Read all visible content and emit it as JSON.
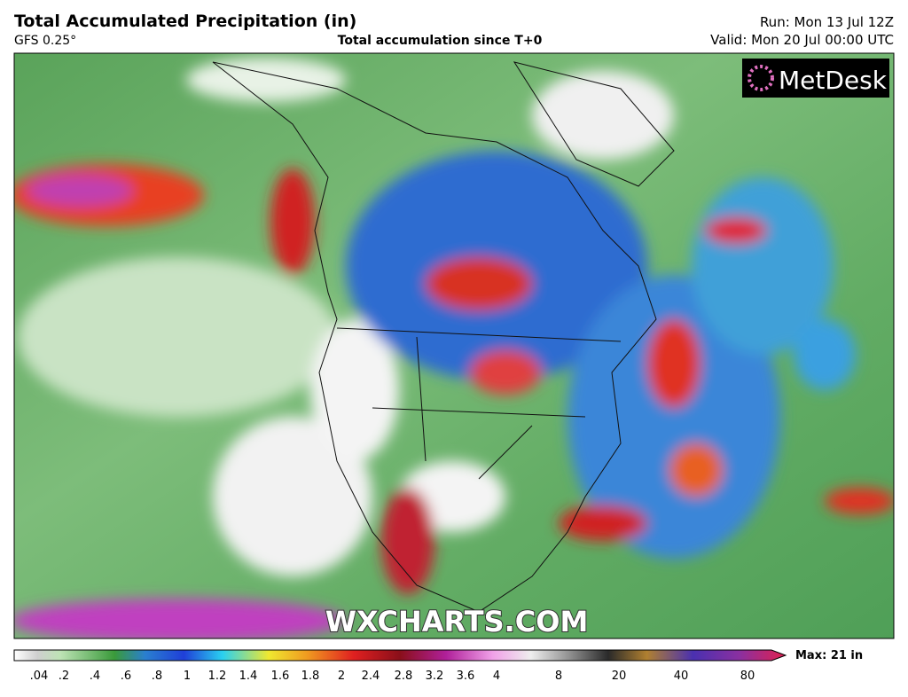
{
  "header": {
    "title": "Total Accumulated Precipitation (in)",
    "model": "GFS 0.25°",
    "subtitle": "Total accumulation since T+0",
    "run": "Run: Mon 13 Jul 12Z",
    "valid": "Valid: Mon 20 Jul 00:00 UTC"
  },
  "logo": "MetDesk",
  "watermark": "WXCHARTS.COM",
  "legend": {
    "ticks": [
      ".04",
      ".2",
      ".4",
      ".6",
      ".8",
      "1",
      "1.2",
      "1.4",
      "1.6",
      "1.8",
      "2",
      "2.4",
      "2.8",
      "3.2",
      "3.6",
      "4",
      "8",
      "20",
      "40",
      "80"
    ],
    "max": "Max: 21 in"
  }
}
